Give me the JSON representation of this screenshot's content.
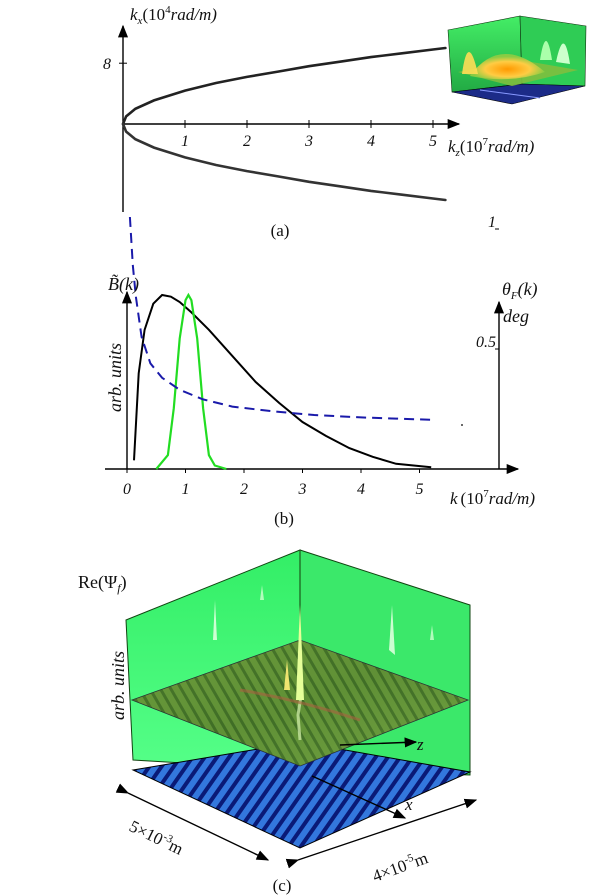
{
  "chart_data": [
    {
      "type": "line",
      "panel_label": "(a)",
      "x_axis": {
        "label": "k",
        "sub": "z",
        "unit_prefix": "(10",
        "unit_exp": "7",
        "unit_suffix": "rad/m)",
        "ticks": [
          "1",
          "2",
          "3",
          "4",
          "5"
        ]
      },
      "y_axis": {
        "label": "k",
        "sub": "x",
        "unit_prefix": "(10",
        "unit_exp": "4",
        "unit_suffix": "rad/m)",
        "ticks": [
          "8"
        ]
      },
      "series": [
        {
          "x": [
            0,
            0.05,
            0.2,
            0.5,
            1,
            1.5,
            2,
            2.5,
            3,
            3.5,
            4,
            4.5,
            5,
            5.2
          ],
          "y": [
            0,
            1.0,
            2.0,
            3.1,
            4.4,
            5.4,
            6.2,
            6.9,
            7.6,
            8.2,
            8.8,
            9.3,
            9.8,
            10.0
          ]
        },
        {
          "x": [
            0,
            0.05,
            0.2,
            0.5,
            1,
            1.5,
            2,
            2.5,
            3,
            3.5,
            4,
            4.5,
            5,
            5.2
          ],
          "y": [
            0,
            -1.0,
            -2.0,
            -3.1,
            -4.4,
            -5.4,
            -6.2,
            -6.9,
            -7.6,
            -8.2,
            -8.8,
            -9.3,
            -9.8,
            -10.0
          ]
        }
      ],
      "inset": "3d-surface-thumbnail"
    },
    {
      "type": "line",
      "panel_label": "(b)",
      "x_axis": {
        "label": "k",
        "unit_prefix": "(10",
        "unit_exp": "7",
        "unit_suffix": "rad/m)",
        "ticks": [
          "0",
          "1",
          "2",
          "3",
          "4",
          "5"
        ]
      },
      "y_left": {
        "label": "B̃(k)",
        "units": "arb. units"
      },
      "y_right": {
        "label": "θ",
        "sub": "F",
        "label_suffix": "(k)",
        "units": "deg",
        "ticks": [
          "0.5",
          "1"
        ]
      },
      "series": [
        {
          "name": "B(k)",
          "color": "#000000",
          "x": [
            0.12,
            0.2,
            0.3,
            0.45,
            0.6,
            0.75,
            0.9,
            1.1,
            1.4,
            1.8,
            2.2,
            2.6,
            3.0,
            3.4,
            3.8,
            4.2,
            4.6,
            5.2
          ],
          "y": [
            0.05,
            0.55,
            0.8,
            0.95,
            1.0,
            0.99,
            0.96,
            0.9,
            0.8,
            0.65,
            0.5,
            0.38,
            0.27,
            0.19,
            0.12,
            0.07,
            0.03,
            0.01
          ]
        },
        {
          "name": "green",
          "color": "#22dd22",
          "x": [
            0.5,
            0.7,
            0.8,
            0.9,
            1.0,
            1.05,
            1.1,
            1.2,
            1.3,
            1.4,
            1.5,
            1.7
          ],
          "y": [
            0.0,
            0.08,
            0.35,
            0.75,
            0.97,
            1.0,
            0.97,
            0.75,
            0.35,
            0.08,
            0.02,
            0.0
          ]
        },
        {
          "name": "theta",
          "color": "#1a1aaa",
          "dash": true,
          "x": [
            0.05,
            0.1,
            0.15,
            0.25,
            0.4,
            0.6,
            0.9,
            1.3,
            1.8,
            2.5,
            3.2,
            4.0,
            4.6,
            5.2
          ],
          "y": [
            1.05,
            0.85,
            0.72,
            0.55,
            0.44,
            0.38,
            0.33,
            0.29,
            0.26,
            0.24,
            0.225,
            0.215,
            0.21,
            0.205
          ]
        }
      ]
    },
    {
      "type": "heatmap",
      "panel_label": "(c)",
      "z_label": "Re(Ψ",
      "z_sub": "f",
      "z_units": "arb. units",
      "axis_x": "x",
      "axis_z": "z",
      "dim1_mant": "5×10",
      "dim1_exp": "-3",
      "dim1_unit": "m",
      "dim2_mant": "4×10",
      "dim2_exp": "-5",
      "dim2_unit": "m"
    }
  ]
}
